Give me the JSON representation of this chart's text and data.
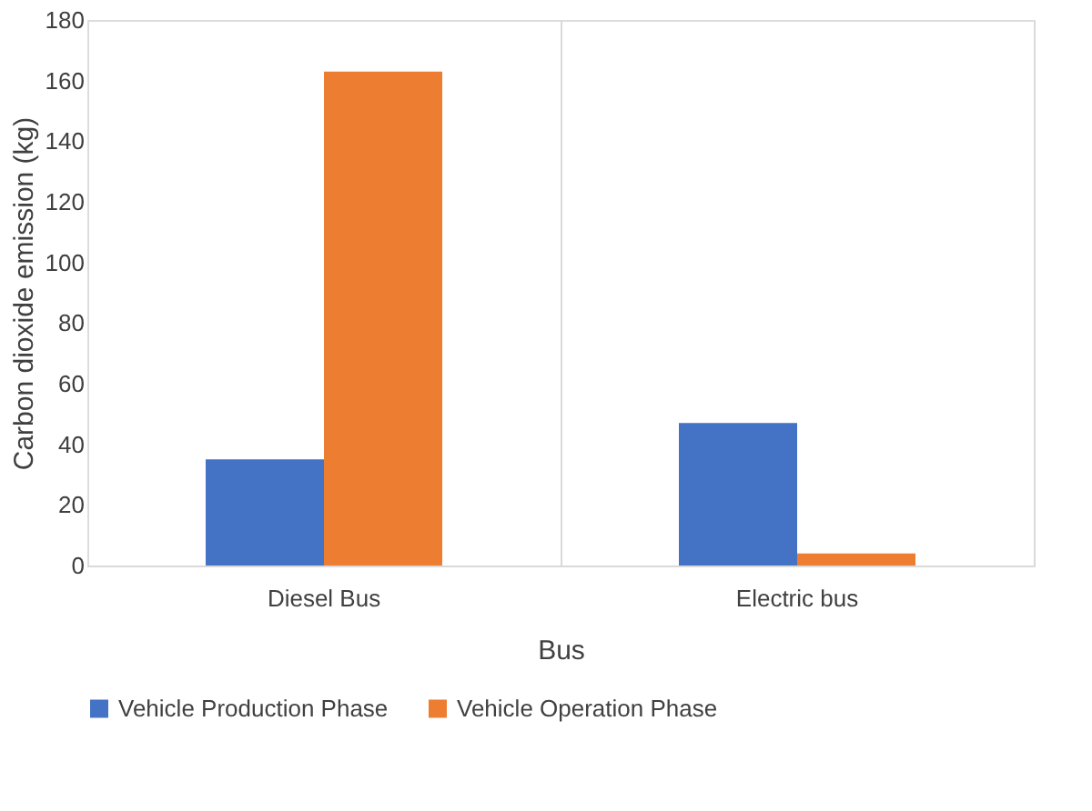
{
  "chart_data": {
    "type": "bar",
    "xlabel": "Bus",
    "ylabel": "Carbon dioxide emission (kg)",
    "categories": [
      "Diesel Bus",
      "Electric bus"
    ],
    "series": [
      {
        "name": "Vehicle Production Phase",
        "color": "#4472c4",
        "values": [
          35,
          47
        ]
      },
      {
        "name": "Vehicle Operation Phase",
        "color": "#ed7d31",
        "values": [
          163,
          4
        ]
      }
    ],
    "ylim": [
      0,
      180
    ],
    "yticks": [
      0,
      20,
      40,
      60,
      80,
      100,
      120,
      140,
      160,
      180
    ],
    "grid": "x",
    "legend": "bottom"
  }
}
